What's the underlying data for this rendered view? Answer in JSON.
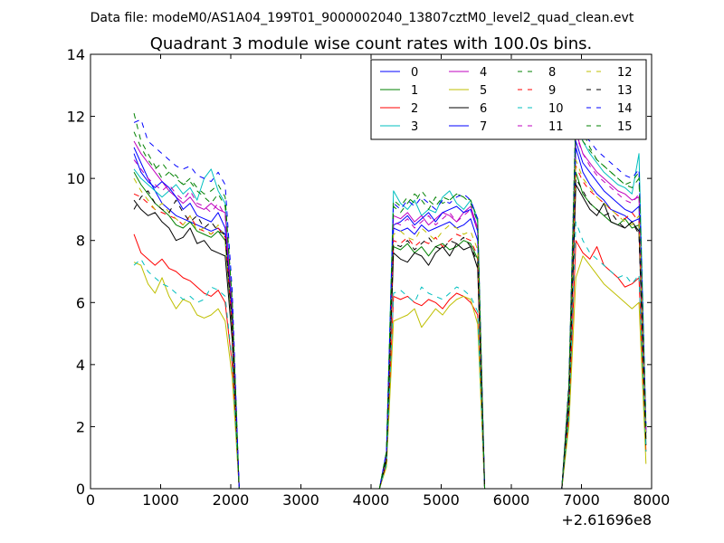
{
  "file_title": "Data file: modeM0/AS1A04_199T01_9000002040_13807cztM0_level2_quad_clean.evt",
  "chart_data": {
    "type": "line",
    "title": "Quadrant 3 module wise count rates with 100.0s bins.",
    "xlabel": "",
    "ylabel": "",
    "x_offset_label": "+2.61696e8",
    "xlim": [
      0,
      8000
    ],
    "ylim": [
      0,
      14
    ],
    "x_ticks": [
      0,
      1000,
      2000,
      3000,
      4000,
      5000,
      6000,
      7000,
      8000
    ],
    "x_tick_labels": [
      "0",
      "1000",
      "2000",
      "3000",
      "4000",
      "5000",
      "6000",
      "7000",
      "8000"
    ],
    "y_ticks": [
      0,
      2,
      4,
      6,
      8,
      10,
      12,
      14
    ],
    "y_tick_labels": [
      "0",
      "2",
      "4",
      "6",
      "8",
      "10",
      "12",
      "14"
    ],
    "legend_position": "top-right",
    "x": [
      620,
      720,
      820,
      920,
      1020,
      1120,
      1220,
      1320,
      1420,
      1520,
      1620,
      1720,
      1820,
      1920,
      2020,
      2120,
      4120,
      4220,
      4320,
      4420,
      4520,
      4620,
      4720,
      4820,
      4920,
      5020,
      5120,
      5220,
      5320,
      5420,
      5520,
      5620,
      6720,
      6820,
      6920,
      7020,
      7120,
      7220,
      7320,
      7420,
      7520,
      7620,
      7720,
      7820,
      7920
    ],
    "x_max_gap": 1200,
    "series": [
      {
        "name": "0",
        "color": "#0000ff",
        "dash": "solid",
        "values": [
          11.0,
          10.5,
          10.0,
          9.6,
          9.2,
          9.0,
          8.8,
          8.7,
          8.6,
          8.5,
          8.4,
          8.3,
          8.4,
          8.2,
          5.5,
          0.0,
          0.0,
          1.0,
          8.4,
          8.3,
          8.4,
          8.2,
          8.5,
          8.3,
          8.4,
          8.5,
          8.6,
          8.4,
          8.5,
          8.7,
          8.0,
          0.0,
          0.0,
          3.0,
          11.0,
          10.2,
          9.8,
          9.5,
          9.3,
          9.0,
          8.9,
          8.8,
          8.6,
          8.7,
          1.8
        ]
      },
      {
        "name": "1",
        "color": "#008000",
        "dash": "solid",
        "values": [
          10.2,
          9.8,
          9.5,
          9.2,
          9.0,
          8.8,
          8.5,
          8.4,
          8.6,
          8.3,
          8.2,
          8.1,
          8.3,
          8.0,
          5.2,
          0.0,
          0.0,
          1.0,
          7.8,
          7.7,
          7.9,
          7.6,
          7.8,
          7.5,
          7.8,
          7.9,
          7.7,
          7.8,
          8.0,
          7.9,
          7.4,
          0.0,
          0.0,
          2.8,
          10.2,
          9.5,
          9.2,
          9.0,
          8.8,
          8.6,
          8.5,
          8.7,
          8.4,
          8.5,
          1.6
        ]
      },
      {
        "name": "2",
        "color": "#ff0000",
        "dash": "solid",
        "values": [
          8.2,
          7.6,
          7.4,
          7.2,
          7.4,
          7.1,
          7.0,
          6.8,
          6.7,
          6.5,
          6.3,
          6.2,
          6.4,
          6.0,
          4.0,
          0.0,
          0.0,
          0.8,
          6.2,
          6.1,
          6.2,
          6.0,
          5.9,
          6.1,
          6.0,
          5.8,
          6.1,
          6.3,
          6.2,
          6.0,
          5.6,
          0.0,
          0.0,
          2.2,
          8.0,
          7.6,
          7.4,
          7.8,
          7.2,
          7.0,
          6.8,
          6.5,
          6.6,
          6.8,
          1.2
        ]
      },
      {
        "name": "3",
        "color": "#00bfbf",
        "dash": "solid",
        "values": [
          10.3,
          10.0,
          9.8,
          9.6,
          9.4,
          9.6,
          9.8,
          9.5,
          9.7,
          9.3,
          10.0,
          10.3,
          9.6,
          9.2,
          6.0,
          0.0,
          0.0,
          1.2,
          9.6,
          9.2,
          9.0,
          9.3,
          8.8,
          9.0,
          8.9,
          9.4,
          9.6,
          9.2,
          9.0,
          9.3,
          8.6,
          0.0,
          0.0,
          3.2,
          11.8,
          11.2,
          10.8,
          10.5,
          10.2,
          10.0,
          9.8,
          9.7,
          9.5,
          10.8,
          2.0
        ]
      },
      {
        "name": "4",
        "color": "#bf00bf",
        "dash": "solid",
        "values": [
          11.2,
          10.8,
          10.5,
          10.2,
          9.9,
          9.6,
          9.4,
          9.2,
          9.4,
          9.1,
          9.0,
          9.2,
          9.0,
          8.9,
          5.8,
          0.0,
          0.0,
          1.1,
          8.8,
          8.7,
          8.9,
          8.6,
          8.8,
          8.5,
          8.7,
          8.9,
          8.8,
          8.6,
          8.9,
          9.1,
          8.4,
          0.0,
          0.0,
          3.1,
          11.5,
          10.8,
          10.5,
          10.2,
          10.0,
          9.8,
          9.6,
          9.5,
          9.3,
          9.4,
          1.9
        ]
      },
      {
        "name": "5",
        "color": "#bfbf00",
        "dash": "solid",
        "values": [
          7.3,
          7.2,
          6.6,
          6.3,
          6.8,
          6.2,
          5.8,
          6.1,
          6.0,
          5.6,
          5.5,
          5.6,
          5.8,
          5.4,
          3.6,
          0.0,
          0.0,
          0.7,
          5.4,
          5.5,
          5.6,
          5.8,
          5.2,
          5.5,
          5.8,
          5.6,
          5.9,
          6.1,
          6.2,
          6.1,
          5.3,
          0.0,
          0.0,
          2.0,
          6.8,
          7.5,
          7.2,
          6.9,
          6.6,
          6.4,
          6.2,
          6.0,
          5.8,
          6.0,
          0.8
        ]
      },
      {
        "name": "6",
        "color": "#000000",
        "dash": "solid",
        "values": [
          9.3,
          9.0,
          8.8,
          8.9,
          8.6,
          8.4,
          8.0,
          8.1,
          8.4,
          7.9,
          8.0,
          7.7,
          7.6,
          7.5,
          4.8,
          0.0,
          0.0,
          0.9,
          7.6,
          7.4,
          7.3,
          7.6,
          7.5,
          7.2,
          7.6,
          7.8,
          7.5,
          7.9,
          7.7,
          7.8,
          7.1,
          0.0,
          0.0,
          2.6,
          9.8,
          9.4,
          9.0,
          8.8,
          9.2,
          8.6,
          8.5,
          8.4,
          8.6,
          8.3,
          1.4
        ]
      },
      {
        "name": "7",
        "color": "#0000ff",
        "dash": "solid",
        "values": [
          10.8,
          10.2,
          9.9,
          9.7,
          9.9,
          9.7,
          9.4,
          9.0,
          9.2,
          8.8,
          8.7,
          8.6,
          8.9,
          8.4,
          5.6,
          0.0,
          0.0,
          1.1,
          8.5,
          8.6,
          8.8,
          8.5,
          8.7,
          8.9,
          8.6,
          8.9,
          9.0,
          9.1,
          8.9,
          9.0,
          8.3,
          0.0,
          0.0,
          3.0,
          11.2,
          10.5,
          10.2,
          9.9,
          9.6,
          9.4,
          9.2,
          9.0,
          8.9,
          9.1,
          1.8
        ]
      },
      {
        "name": "8",
        "color": "#008000",
        "dash": "dashed",
        "values": [
          12.1,
          11.2,
          10.8,
          10.4,
          10.0,
          10.2,
          10.1,
          9.8,
          9.9,
          9.6,
          9.4,
          9.2,
          9.5,
          9.1,
          6.0,
          0.0,
          0.0,
          1.2,
          9.1,
          8.9,
          9.2,
          9.5,
          9.3,
          9.0,
          9.4,
          9.2,
          9.3,
          9.5,
          9.4,
          9.3,
          8.7,
          0.0,
          0.0,
          3.3,
          12.3,
          11.5,
          11.0,
          10.6,
          10.4,
          10.2,
          10.0,
          9.8,
          9.9,
          10.2,
          2.0
        ]
      },
      {
        "name": "9",
        "color": "#ff0000",
        "dash": "dashed",
        "values": [
          9.5,
          9.4,
          9.2,
          9.0,
          8.9,
          8.8,
          8.7,
          8.5,
          8.8,
          8.4,
          8.3,
          8.2,
          8.4,
          8.1,
          5.3,
          0.0,
          0.0,
          1.0,
          8.0,
          7.9,
          8.1,
          7.8,
          8.0,
          7.9,
          8.1,
          7.8,
          8.0,
          8.2,
          8.1,
          8.0,
          7.5,
          0.0,
          0.0,
          2.9,
          10.4,
          9.9,
          9.6,
          9.4,
          9.2,
          9.0,
          8.8,
          8.7,
          8.9,
          8.6,
          1.6
        ]
      },
      {
        "name": "10",
        "color": "#00bfbf",
        "dash": "dashed",
        "values": [
          7.2,
          7.4,
          7.0,
          6.8,
          6.6,
          6.5,
          6.3,
          6.1,
          6.2,
          6.0,
          6.1,
          6.5,
          6.4,
          6.2,
          4.1,
          0.0,
          0.0,
          0.8,
          6.3,
          6.4,
          6.2,
          6.0,
          6.5,
          6.3,
          6.2,
          6.1,
          6.3,
          6.5,
          6.4,
          6.2,
          5.7,
          0.0,
          0.0,
          2.3,
          8.6,
          8.0,
          7.6,
          7.4,
          7.2,
          7.0,
          6.8,
          6.9,
          6.6,
          6.9,
          1.2
        ]
      },
      {
        "name": "11",
        "color": "#bf00bf",
        "dash": "dashed",
        "values": [
          10.6,
          10.3,
          10.0,
          9.8,
          9.6,
          9.8,
          9.5,
          9.3,
          9.6,
          9.2,
          9.1,
          8.9,
          9.2,
          8.8,
          5.7,
          0.0,
          0.0,
          1.1,
          8.6,
          8.5,
          8.7,
          8.4,
          8.6,
          8.8,
          8.5,
          8.7,
          8.9,
          8.6,
          8.8,
          9.0,
          8.3,
          0.0,
          0.0,
          3.0,
          11.4,
          10.8,
          10.4,
          10.1,
          9.9,
          9.7,
          9.5,
          9.3,
          9.2,
          9.5,
          1.8
        ]
      },
      {
        "name": "12",
        "color": "#bfbf00",
        "dash": "dashed",
        "values": [
          10.0,
          9.6,
          9.3,
          9.0,
          9.2,
          8.9,
          8.7,
          8.5,
          8.8,
          8.3,
          8.4,
          8.2,
          8.5,
          8.1,
          5.3,
          0.0,
          0.0,
          1.0,
          8.2,
          8.3,
          8.1,
          8.0,
          8.4,
          8.2,
          8.0,
          8.3,
          8.5,
          8.4,
          8.2,
          8.3,
          7.7,
          0.0,
          0.0,
          2.9,
          10.6,
          10.0,
          9.7,
          9.4,
          9.2,
          9.0,
          8.8,
          8.6,
          8.5,
          8.8,
          1.6
        ]
      },
      {
        "name": "13",
        "color": "#000000",
        "dash": "dashed",
        "values": [
          9.0,
          9.4,
          9.6,
          9.2,
          9.0,
          8.9,
          9.3,
          8.9,
          8.6,
          8.8,
          8.4,
          8.6,
          8.3,
          8.2,
          5.3,
          0.0,
          0.0,
          1.0,
          7.9,
          7.8,
          8.0,
          7.7,
          7.9,
          8.1,
          7.8,
          7.7,
          8.0,
          7.9,
          8.1,
          7.8,
          7.3,
          0.0,
          0.0,
          2.8,
          10.0,
          9.6,
          9.2,
          9.0,
          8.8,
          8.9,
          8.6,
          8.4,
          8.6,
          8.2,
          1.5
        ]
      },
      {
        "name": "14",
        "color": "#0000ff",
        "dash": "dashed",
        "values": [
          11.8,
          11.9,
          11.2,
          11.0,
          10.8,
          10.6,
          10.4,
          10.3,
          10.4,
          10.1,
          10.0,
          9.9,
          10.2,
          9.8,
          6.4,
          0.0,
          0.0,
          1.2,
          9.2,
          9.0,
          9.3,
          9.1,
          9.4,
          9.2,
          9.0,
          9.3,
          9.2,
          9.4,
          9.5,
          9.3,
          8.7,
          0.0,
          0.0,
          3.4,
          12.0,
          11.4,
          11.2,
          10.9,
          10.7,
          10.5,
          10.3,
          10.1,
          10.0,
          10.3,
          2.1
        ]
      },
      {
        "name": "15",
        "color": "#008000",
        "dash": "dashed",
        "values": [
          11.5,
          11.0,
          10.6,
          10.3,
          10.5,
          10.2,
          10.0,
          9.8,
          10.0,
          9.7,
          9.5,
          9.6,
          9.8,
          9.4,
          6.1,
          0.0,
          0.0,
          1.2,
          9.3,
          9.1,
          9.4,
          9.2,
          9.6,
          9.3,
          9.1,
          9.4,
          9.3,
          9.5,
          9.4,
          9.2,
          8.6,
          0.0,
          0.0,
          3.3,
          11.8,
          11.2,
          10.9,
          10.6,
          10.4,
          10.2,
          10.0,
          9.8,
          9.7,
          10.0,
          2.0
        ]
      }
    ]
  }
}
